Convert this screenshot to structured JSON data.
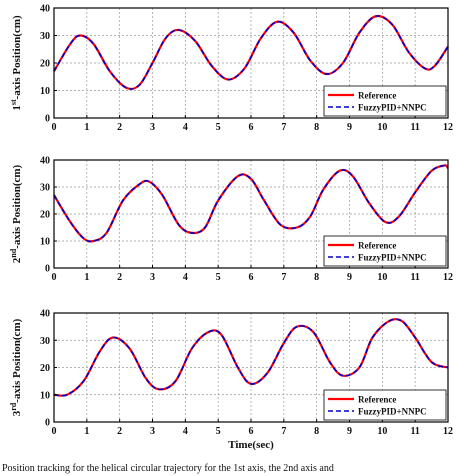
{
  "chart_data": [
    {
      "type": "line",
      "title": "",
      "xlabel": "",
      "ylabel_sup": "st",
      "ylabel_pre": "1",
      "ylabel_post": "-axis Position(cm)",
      "xlim": [
        0,
        12
      ],
      "ylim": [
        0,
        40
      ],
      "xticks": [
        "0",
        "1",
        "2",
        "3",
        "4",
        "5",
        "6",
        "7",
        "8",
        "9",
        "10",
        "11",
        "12"
      ],
      "yticks": [
        "0",
        "10",
        "20",
        "30",
        "40"
      ],
      "grid": true,
      "legend_position": "bottom-right",
      "x": [
        0,
        0.5,
        0.8,
        1.2,
        1.7,
        2.2,
        2.6,
        3.0,
        3.4,
        3.8,
        4.3,
        4.8,
        5.3,
        5.8,
        6.3,
        6.8,
        7.3,
        7.8,
        8.3,
        8.8,
        9.3,
        9.8,
        10.3,
        10.8,
        11.3,
        11.6,
        12
      ],
      "series": [
        {
          "name": "Reference",
          "color": "#ff0000",
          "dash": "solid",
          "values": [
            17,
            27,
            30,
            27,
            17,
            11,
            12,
            20,
            29,
            32,
            28,
            19,
            14,
            18,
            29,
            35,
            31,
            21,
            16,
            20,
            31,
            37,
            34,
            24,
            18,
            19,
            26
          ]
        },
        {
          "name": "FuzzyPID+NNPC",
          "color": "#0000cc",
          "dash": "dashed",
          "values": [
            17,
            27,
            30,
            27,
            17,
            11,
            12,
            20,
            29,
            32,
            28,
            19,
            14,
            18,
            29,
            35,
            31,
            21,
            16,
            20,
            31,
            37,
            34,
            24,
            18,
            19,
            26
          ]
        }
      ]
    },
    {
      "type": "line",
      "title": "",
      "xlabel": "",
      "ylabel_sup": "nd",
      "ylabel_pre": "2",
      "ylabel_post": "-axis Position(cm)",
      "xlim": [
        0,
        12
      ],
      "ylim": [
        0,
        40
      ],
      "xticks": [
        "0",
        "1",
        "2",
        "3",
        "4",
        "5",
        "6",
        "7",
        "8",
        "9",
        "10",
        "11",
        "12"
      ],
      "yticks": [
        "0",
        "10",
        "20",
        "30",
        "40"
      ],
      "grid": true,
      "legend_position": "bottom-right",
      "x": [
        0,
        0.5,
        0.9,
        1.2,
        1.6,
        2.1,
        2.6,
        2.9,
        3.3,
        3.8,
        4.2,
        4.6,
        5.0,
        5.6,
        6.0,
        6.4,
        6.9,
        7.4,
        7.8,
        8.2,
        8.7,
        9.1,
        9.6,
        10.1,
        10.5,
        11.0,
        11.5,
        11.9,
        12
      ],
      "series": [
        {
          "name": "Reference",
          "color": "#ff0000",
          "dash": "solid",
          "values": [
            27,
            17,
            11,
            10,
            13,
            25,
            31,
            32,
            27,
            16,
            13,
            15,
            25,
            34,
            33,
            25,
            16,
            15,
            19,
            29,
            36,
            34,
            24,
            17,
            19,
            28,
            36,
            38,
            37
          ]
        },
        {
          "name": "FuzzyPID+NNPC",
          "color": "#0000cc",
          "dash": "dashed",
          "values": [
            27,
            17,
            11,
            10,
            13,
            25,
            31,
            32,
            27,
            16,
            13,
            15,
            25,
            34,
            33,
            25,
            16,
            15,
            19,
            29,
            36,
            34,
            24,
            17,
            19,
            28,
            36,
            38,
            37
          ]
        }
      ]
    },
    {
      "type": "line",
      "title": "",
      "xlabel": "Time(sec)",
      "ylabel_sup": "rd",
      "ylabel_pre": "3",
      "ylabel_post": "-axis Position(cm)",
      "xlim": [
        0,
        12
      ],
      "ylim": [
        0,
        40
      ],
      "xticks": [
        "0",
        "1",
        "2",
        "3",
        "4",
        "5",
        "6",
        "7",
        "8",
        "9",
        "10",
        "11",
        "12"
      ],
      "yticks": [
        "0",
        "10",
        "20",
        "30",
        "40"
      ],
      "grid": true,
      "legend_position": "bottom-right",
      "x": [
        0,
        0.4,
        0.9,
        1.4,
        1.8,
        2.3,
        2.8,
        3.2,
        3.7,
        4.2,
        4.7,
        5.1,
        5.6,
        6.0,
        6.5,
        7.0,
        7.4,
        7.9,
        8.4,
        8.8,
        9.3,
        9.7,
        10.2,
        10.6,
        11.0,
        11.5,
        12
      ],
      "series": [
        {
          "name": "Reference",
          "color": "#ff0000",
          "dash": "solid",
          "values": [
            10,
            10,
            15,
            26,
            31,
            27,
            16,
            12,
            15,
            27,
            33,
            32,
            20,
            14,
            18,
            29,
            35,
            33,
            22,
            17,
            20,
            31,
            37,
            37,
            31,
            22,
            20
          ]
        },
        {
          "name": "FuzzyPID+NNPC",
          "color": "#0000cc",
          "dash": "dashed",
          "values": [
            10,
            10,
            15,
            26,
            31,
            27,
            16,
            12,
            15,
            27,
            33,
            32,
            20,
            14,
            18,
            29,
            35,
            33,
            22,
            17,
            20,
            31,
            37,
            37,
            31,
            22,
            20
          ]
        }
      ]
    }
  ],
  "caption": "Position tracking for the helical circular trajectory for the 1st axis, the 2nd axis and"
}
